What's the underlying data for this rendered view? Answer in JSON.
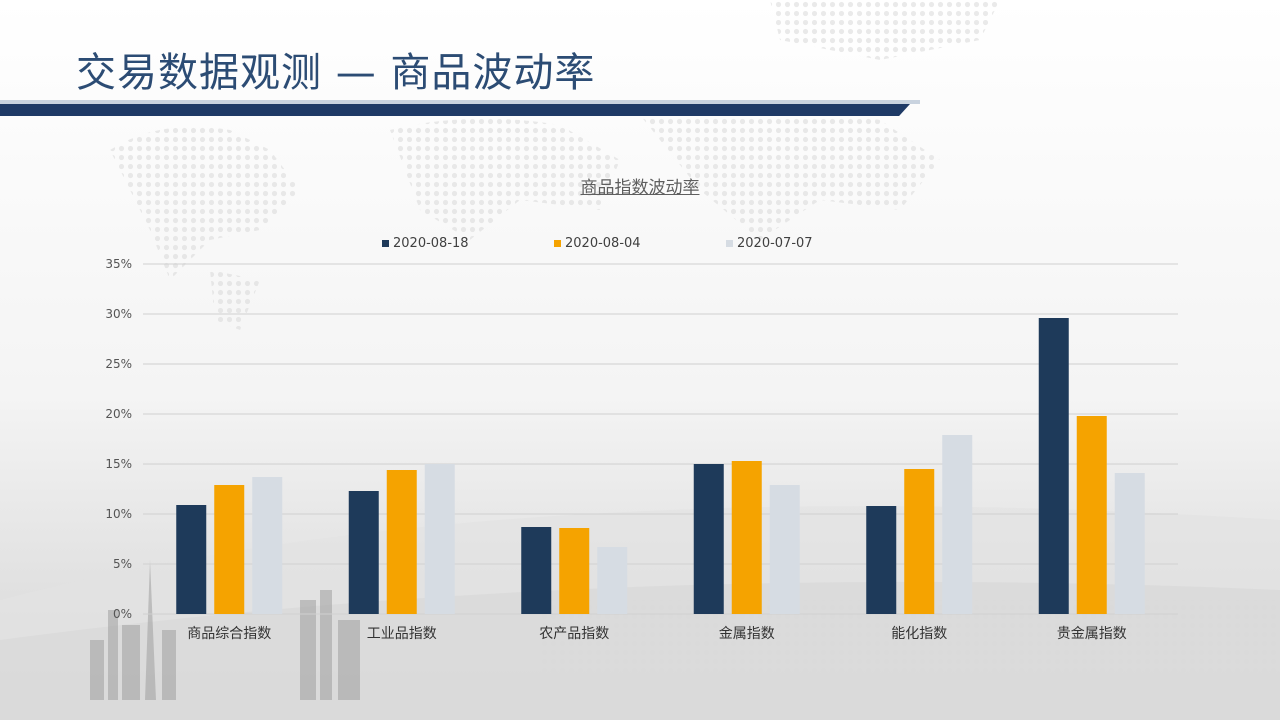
{
  "page": {
    "title": "交易数据观测 — 商品波动率"
  },
  "chart_data": {
    "type": "bar",
    "title": "商品指数波动率",
    "categories": [
      "商品综合指数",
      "工业品指数",
      "农产品指数",
      "金属指数",
      "能化指数",
      "贵金属指数"
    ],
    "series": [
      {
        "name": "2020-08-18",
        "color": "#1e3a5a",
        "values": [
          10.9,
          12.3,
          8.7,
          15.0,
          10.8,
          29.6
        ]
      },
      {
        "name": "2020-08-04",
        "color": "#f5a300",
        "values": [
          12.9,
          14.4,
          8.6,
          15.3,
          14.5,
          19.8
        ]
      },
      {
        "name": "2020-07-07",
        "color": "#d6dce3",
        "values": [
          13.7,
          15.0,
          6.7,
          12.9,
          17.9,
          14.1
        ]
      }
    ],
    "y_ticks": [
      "0%",
      "5%",
      "10%",
      "15%",
      "20%",
      "25%",
      "30%",
      "35%"
    ],
    "ylim": [
      0,
      35
    ],
    "y_unit": "%",
    "grid": true,
    "legend_position": "top-center"
  }
}
